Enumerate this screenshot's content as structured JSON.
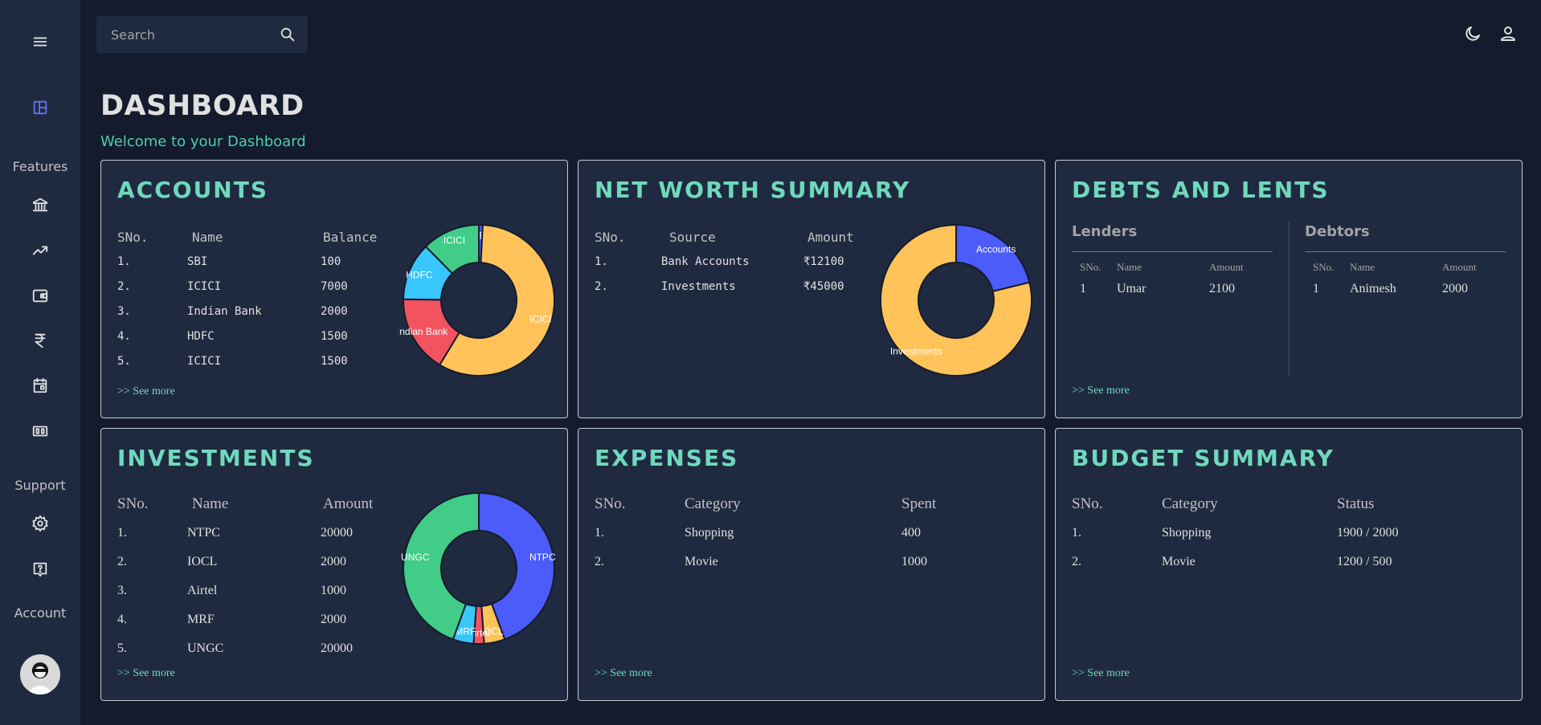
{
  "sidebar": {
    "menu_icon": "hamburger-icon",
    "dashboard_icon": "dashboard-icon",
    "features_label": "Features",
    "feature_icons": [
      "bank-icon",
      "trending-up-icon",
      "wallet-icon",
      "rupee-icon",
      "calendar-icon",
      "money-icon"
    ],
    "support_label": "Support",
    "support_icons": [
      "settings-icon",
      "help-icon"
    ],
    "account_label": "Account",
    "accent_color": "#6870fa"
  },
  "topbar": {
    "search_placeholder": "Search",
    "theme_icon": "moon-icon",
    "profile_icon": "person-icon"
  },
  "header": {
    "title": "DASHBOARD",
    "subtitle": "Welcome to your Dashboard"
  },
  "accounts": {
    "title": "ACCOUNTS",
    "columns": [
      "SNo.",
      "Name",
      "Balance"
    ],
    "rows": [
      [
        "1.",
        "SBI",
        "100"
      ],
      [
        "2.",
        "ICICI",
        "7000"
      ],
      [
        "3.",
        "Indian Bank",
        "2000"
      ],
      [
        "4.",
        "HDFC",
        "1500"
      ],
      [
        "5.",
        "ICICI",
        "1500"
      ]
    ],
    "see_more": ">> See more"
  },
  "net_worth": {
    "title": "NET WORTH SUMMARY",
    "columns": [
      "SNo.",
      "Source",
      "Amount"
    ],
    "rows": [
      [
        "1.",
        "Bank Accounts",
        "₹12100"
      ],
      [
        "2.",
        "Investments",
        "₹45000"
      ]
    ]
  },
  "debts": {
    "title": "DEBTS AND LENTS",
    "lenders": {
      "heading": "Lenders",
      "columns": [
        "SNo.",
        "Name",
        "Amount"
      ],
      "rows": [
        [
          "1",
          "Umar",
          "2100"
        ]
      ]
    },
    "debtors": {
      "heading": "Debtors",
      "columns": [
        "SNo.",
        "Name",
        "Amount"
      ],
      "rows": [
        [
          "1",
          "Animesh",
          "2000"
        ]
      ]
    },
    "see_more": ">> See more"
  },
  "investments": {
    "title": "INVESTMENTS",
    "columns": [
      "SNo.",
      "Name",
      "Amount"
    ],
    "rows": [
      [
        "1.",
        "NTPC",
        "20000"
      ],
      [
        "2.",
        "IOCL",
        "2000"
      ],
      [
        "3.",
        "Airtel",
        "1000"
      ],
      [
        "4.",
        "MRF",
        "2000"
      ],
      [
        "5.",
        "UNGC",
        "20000"
      ]
    ],
    "see_more": ">> See more"
  },
  "expenses": {
    "title": "EXPENSES",
    "columns": [
      "SNo.",
      "Category",
      "Spent"
    ],
    "rows": [
      [
        "1.",
        "Shopping",
        "400"
      ],
      [
        "2.",
        "Movie",
        "1000"
      ]
    ],
    "see_more": ">> See more"
  },
  "budget": {
    "title": "BUDGET SUMMARY",
    "columns": [
      "SNo.",
      "Category",
      "Status"
    ],
    "rows": [
      [
        "1.",
        "Shopping",
        "1900 / 2000"
      ],
      [
        "2.",
        "Movie",
        "1200 / 500"
      ]
    ],
    "see_more": ">> See more"
  },
  "chart_data": [
    {
      "type": "pie",
      "donut": true,
      "labels": [
        "SBI",
        "ICICI",
        "Indian Bank",
        "HDFC",
        "ICICI"
      ],
      "values": [
        100,
        7000,
        2000,
        1500,
        1500
      ],
      "colors": [
        "#4b5cfa",
        "#ffc35a",
        "#f1545f",
        "#38c6fb",
        "#41cd87"
      ]
    },
    {
      "type": "pie",
      "donut": true,
      "labels": [
        "Accounts",
        "Investments"
      ],
      "values": [
        12100,
        45000
      ],
      "colors": [
        "#4b5cfa",
        "#ffc35a"
      ]
    },
    {
      "type": "pie",
      "donut": true,
      "labels": [
        "NTPC",
        "IOCL",
        "Airtel",
        "MRF",
        "UNGC"
      ],
      "values": [
        20000,
        2000,
        1000,
        2000,
        20000
      ],
      "colors": [
        "#4b5cfa",
        "#ffc35a",
        "#f1545f",
        "#38c6fb",
        "#41cd87"
      ]
    }
  ]
}
